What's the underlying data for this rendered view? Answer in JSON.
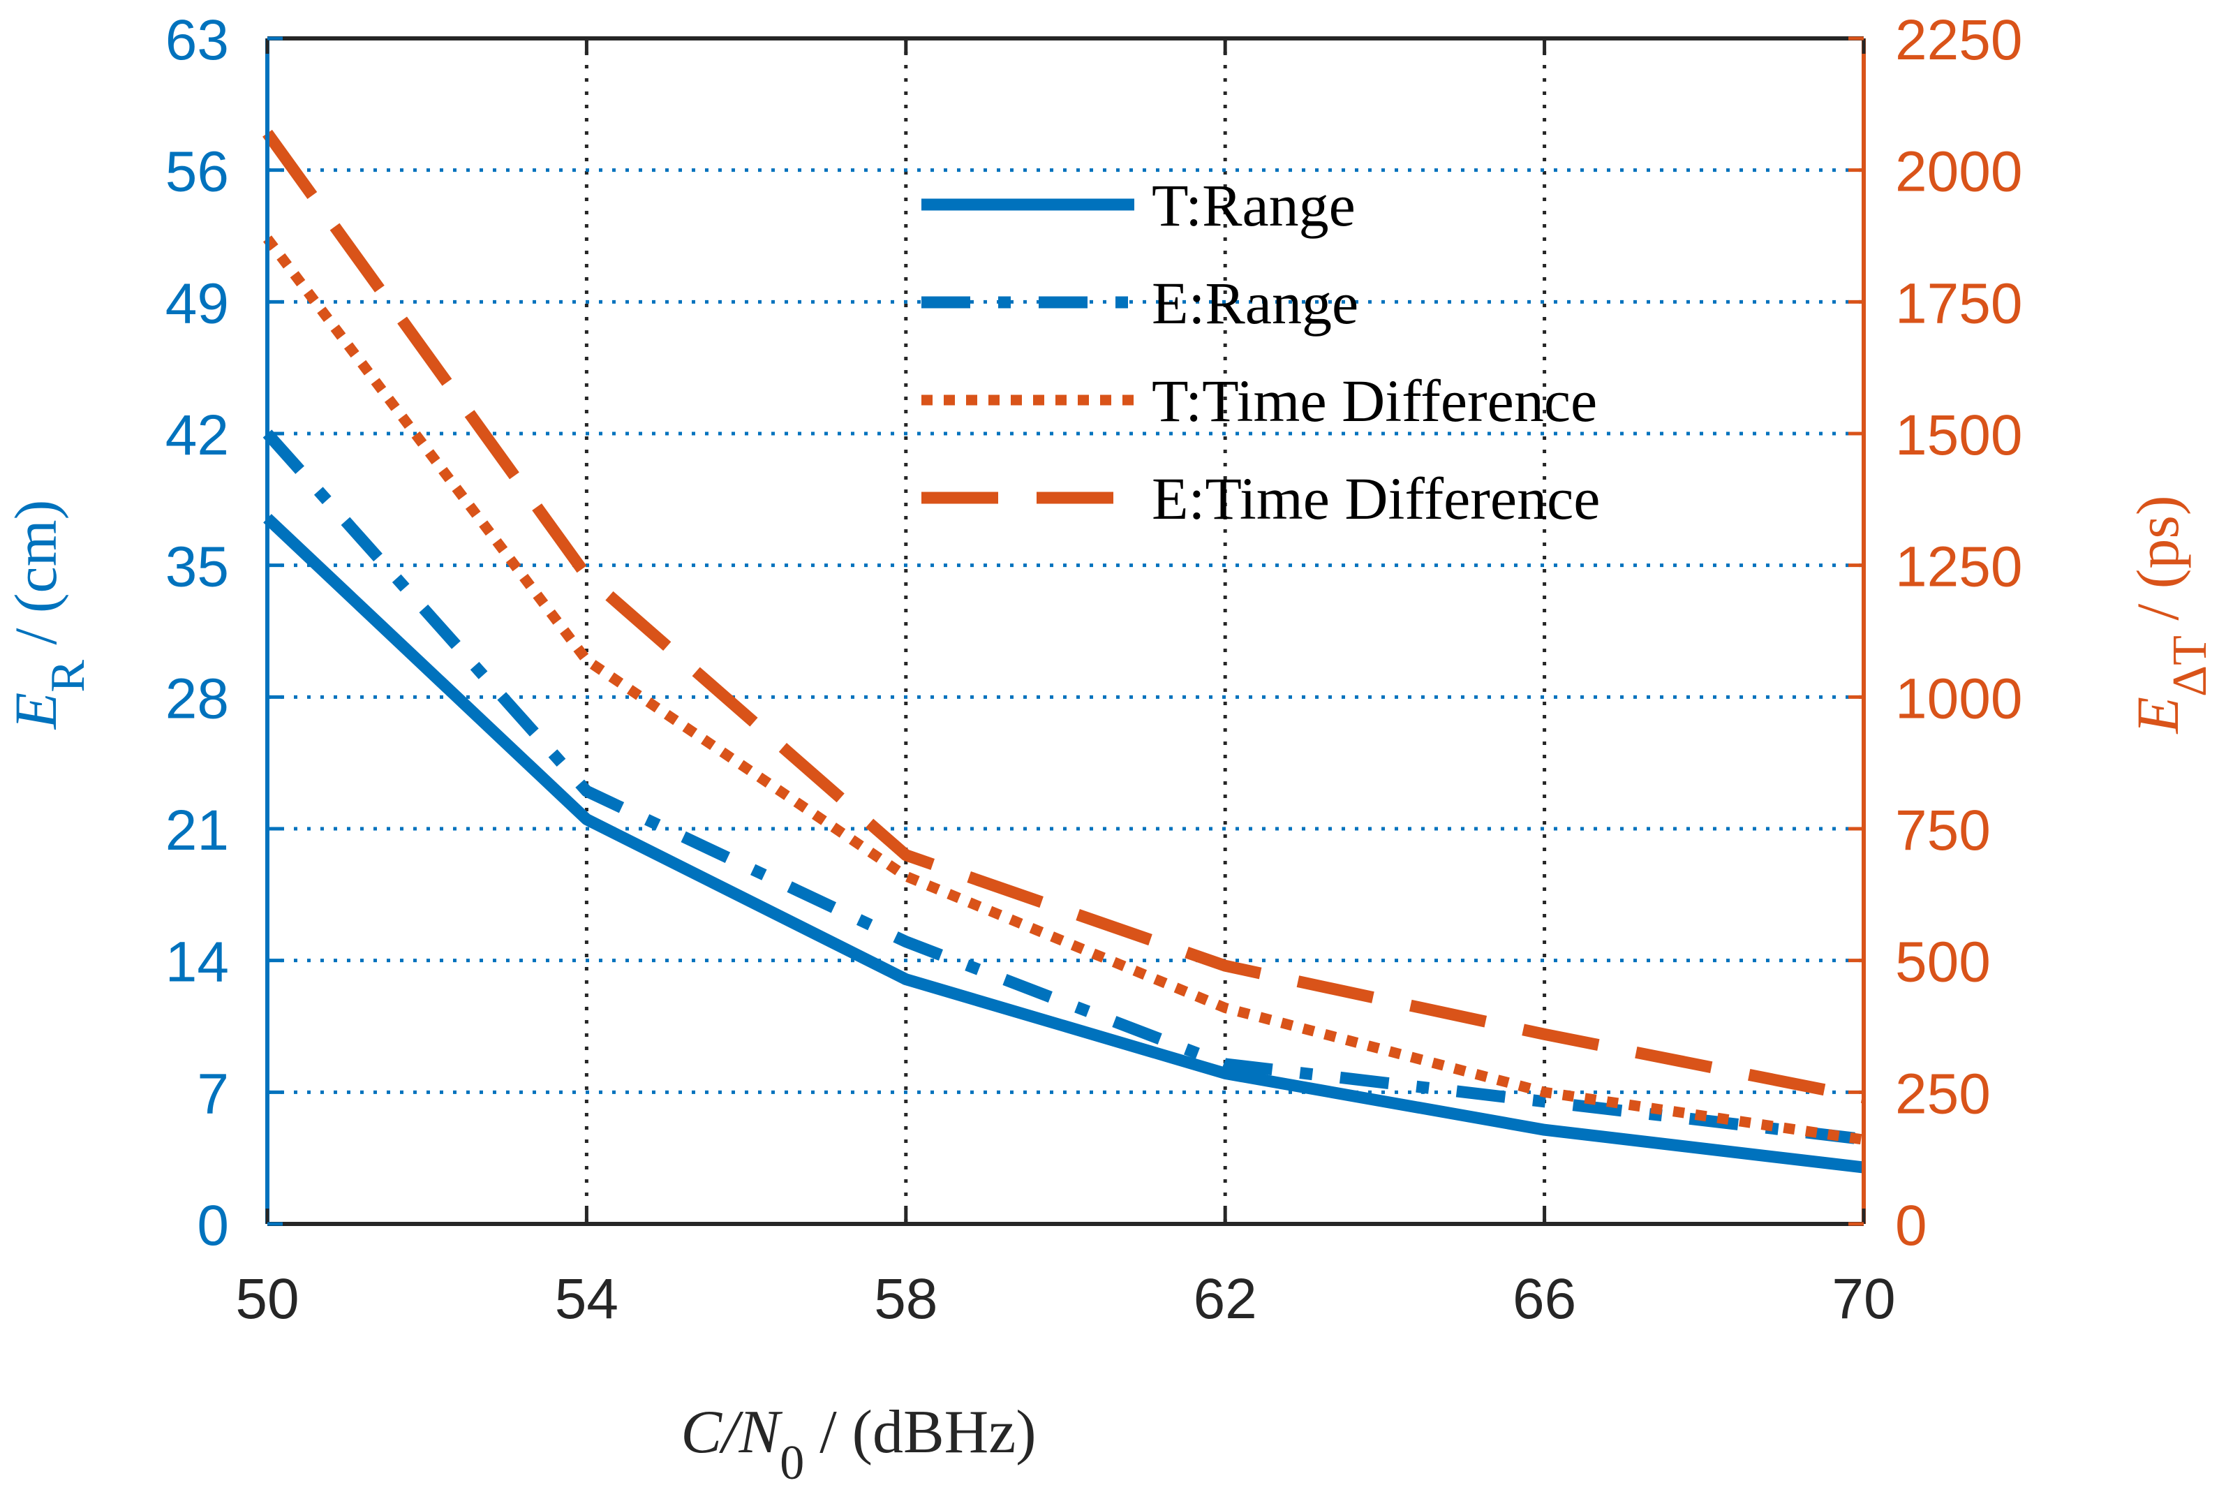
{
  "chart_data": {
    "type": "line",
    "x": [
      50,
      54,
      58,
      62,
      66,
      70
    ],
    "xlim": [
      50,
      70
    ],
    "x_ticks": [
      "50",
      "54",
      "58",
      "62",
      "66",
      "70"
    ],
    "xlabel": {
      "main": "C/N",
      "sub": "0",
      "unit": " / (dBHz)"
    },
    "y_left": {
      "lim": [
        0,
        63
      ],
      "ticks": [
        "0",
        "7",
        "14",
        "21",
        "28",
        "35",
        "42",
        "49",
        "56",
        "63"
      ],
      "label": {
        "main": "E",
        "sub": "R",
        "unit": " / (cm)"
      },
      "color": "#0072BD"
    },
    "y_right": {
      "lim": [
        0,
        2250
      ],
      "ticks": [
        "0",
        "250",
        "500",
        "750",
        "1000",
        "1250",
        "1500",
        "1750",
        "2000",
        "2250"
      ],
      "label": {
        "main": "E",
        "sub": "ΔT",
        "unit": " / (ps)"
      },
      "color": "#D95319"
    },
    "grid": "dotted",
    "legend_position": "top-center",
    "series": [
      {
        "name": "T:Range",
        "axis": "left",
        "style": "solid",
        "color": "#0072BD",
        "values": [
          37.5,
          21.5,
          13.0,
          8.0,
          5.0,
          3.0
        ]
      },
      {
        "name": "E:Range",
        "axis": "left",
        "style": "dashdot",
        "color": "#0072BD",
        "values": [
          42.0,
          23.0,
          15.0,
          8.5,
          6.5,
          4.5
        ]
      },
      {
        "name": "T:Time Difference",
        "axis": "right",
        "style": "dotted",
        "color": "#D95319",
        "values": [
          1870,
          1070,
          660,
          410,
          250,
          160
        ]
      },
      {
        "name": "E:Time Difference",
        "axis": "right",
        "style": "dashed",
        "color": "#D95319",
        "values": [
          2070,
          1230,
          700,
          490,
          360,
          240
        ]
      }
    ]
  }
}
